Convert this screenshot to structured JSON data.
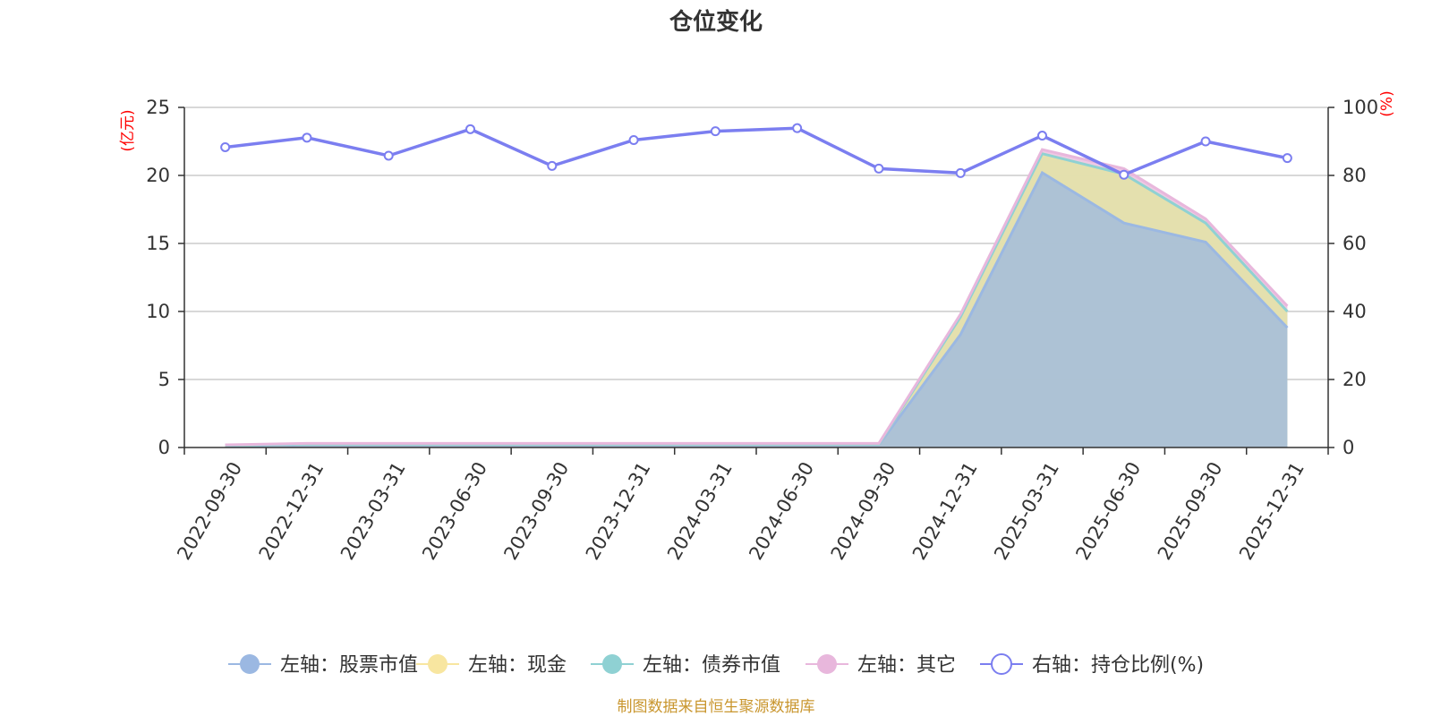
{
  "chart_data": {
    "type": "area",
    "title": "仓位变化",
    "left_unit": "(亿元)",
    "right_unit": "(%)",
    "categories": [
      "2022-09-30",
      "2022-12-31",
      "2023-03-31",
      "2023-06-30",
      "2023-09-30",
      "2023-12-31",
      "2024-03-31",
      "2024-06-30",
      "2024-09-30",
      "2024-12-31",
      "2025-03-31",
      "2025-06-30",
      "2025-09-30",
      "2025-12-31"
    ],
    "left_ylim": [
      0,
      25
    ],
    "left_ticks": [
      "0",
      "5",
      "10",
      "15",
      "20",
      "25"
    ],
    "right_ylim": [
      0,
      100
    ],
    "right_ticks": [
      "0",
      "20",
      "40",
      "60",
      "80",
      "100"
    ],
    "grid": true,
    "legend_position": "bottom",
    "series": [
      {
        "name": "左轴：股票市值",
        "color": "#9bb8e2",
        "axis": "left",
        "stacked": true,
        "values": [
          0.1,
          0.2,
          0.2,
          0.2,
          0.2,
          0.2,
          0.2,
          0.2,
          0.2,
          8.3,
          20.2,
          16.5,
          15.1,
          8.8
        ]
      },
      {
        "name": "左轴：现金",
        "color": "#f8e6a0",
        "axis": "left",
        "stacked": true,
        "values": [
          0.05,
          0.05,
          0.05,
          0.05,
          0.05,
          0.05,
          0.05,
          0.05,
          0.05,
          1.3,
          1.4,
          3.6,
          1.4,
          1.2
        ]
      },
      {
        "name": "左轴：债券市值",
        "color": "#8fd1d3",
        "axis": "left",
        "stacked": true,
        "values": [
          0,
          0,
          0,
          0,
          0,
          0,
          0,
          0,
          0,
          0,
          0,
          0,
          0,
          0
        ]
      },
      {
        "name": "左轴：其它",
        "color": "#e8b7dc",
        "axis": "left",
        "stacked": true,
        "values": [
          0.05,
          0.05,
          0.05,
          0.05,
          0.05,
          0.05,
          0.05,
          0.05,
          0.05,
          0.2,
          0.3,
          0.4,
          0.3,
          0.4
        ]
      },
      {
        "name": "右轴：持仓比例(%)",
        "color": "#7b7ef0",
        "axis": "right",
        "stacked": false,
        "values": [
          88.3,
          91.1,
          85.8,
          93.6,
          82.8,
          90.4,
          93.0,
          93.9,
          82.0,
          80.7,
          91.7,
          80.2,
          90.0,
          85.1
        ]
      }
    ],
    "source_note": "制图数据来自恒生聚源数据库"
  }
}
